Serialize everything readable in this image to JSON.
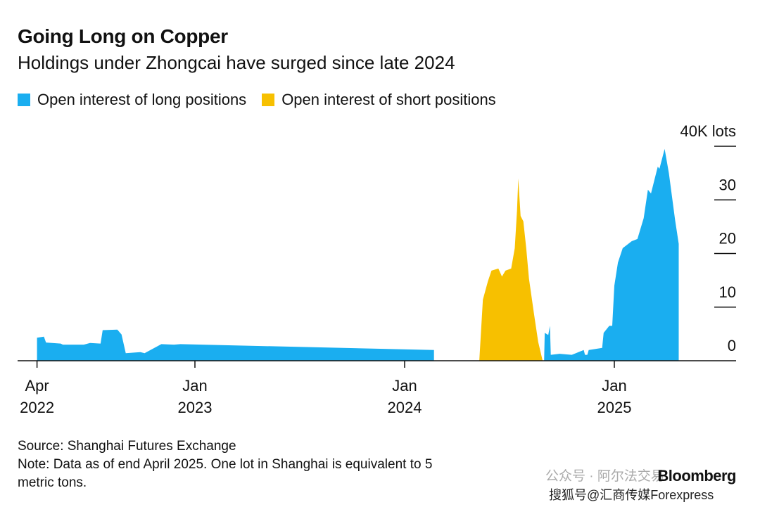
{
  "chart_data": {
    "type": "area",
    "title": "Going Long on Copper",
    "subtitle": "Holdings under Zhongcai have surged since late 2024",
    "y_unit_label": "40K lots",
    "ylim": [
      0,
      40
    ],
    "y_ticks": [
      {
        "value": 40,
        "label": "40K lots"
      },
      {
        "value": 30,
        "label": "30"
      },
      {
        "value": 20,
        "label": "20"
      },
      {
        "value": 10,
        "label": "10"
      },
      {
        "value": 0,
        "label": "0"
      }
    ],
    "x_ticks": [
      {
        "value": 2022.247,
        "line1": "Apr",
        "line2": "2022"
      },
      {
        "value": 2023.0,
        "line1": "Jan",
        "line2": "2023"
      },
      {
        "value": 2024.0,
        "line1": "Jan",
        "line2": "2024"
      },
      {
        "value": 2025.0,
        "line1": "Jan",
        "line2": "2025"
      }
    ],
    "legend_position": "top-left",
    "series": [
      {
        "name": "Open interest of long positions",
        "color": "#1aaef0",
        "segments": [
          [
            [
              2022.247,
              0
            ],
            [
              2022.247,
              4.3
            ],
            [
              2022.28,
              4.5
            ],
            [
              2022.29,
              3.4
            ],
            [
              2022.36,
              3.2
            ],
            [
              2022.37,
              3.0
            ],
            [
              2022.47,
              3.0
            ],
            [
              2022.5,
              3.3
            ],
            [
              2022.55,
              3.2
            ],
            [
              2022.56,
              5.7
            ],
            [
              2022.63,
              5.8
            ],
            [
              2022.65,
              4.9
            ],
            [
              2022.67,
              1.4
            ],
            [
              2022.74,
              1.6
            ],
            [
              2022.76,
              1.4
            ],
            [
              2022.84,
              3.1
            ],
            [
              2022.9,
              3.0
            ],
            [
              2022.93,
              3.1
            ],
            [
              2024.14,
              2.0
            ],
            [
              2024.14,
              0
            ]
          ],
          [
            [
              2024.665,
              0
            ],
            [
              2024.668,
              5.2
            ],
            [
              2024.685,
              4.8
            ],
            [
              2024.693,
              6.5
            ],
            [
              2024.697,
              1.1
            ],
            [
              2024.739,
              1.3
            ],
            [
              2024.797,
              1.1
            ],
            [
              2024.854,
              2.0
            ],
            [
              2024.86,
              1.1
            ],
            [
              2024.871,
              1.1
            ],
            [
              2024.878,
              2.0
            ],
            [
              2024.942,
              2.4
            ],
            [
              2024.949,
              5.2
            ],
            [
              2024.976,
              6.5
            ],
            [
              2024.99,
              6.5
            ],
            [
              2025.0,
              14
            ],
            [
              2025.017,
              18.3
            ],
            [
              2025.04,
              21
            ],
            [
              2025.083,
              22.3
            ],
            [
              2025.11,
              22.7
            ],
            [
              2025.14,
              26.6
            ],
            [
              2025.16,
              31.9
            ],
            [
              2025.175,
              31.2
            ],
            [
              2025.207,
              36.2
            ],
            [
              2025.215,
              35.8
            ],
            [
              2025.24,
              39.5
            ],
            [
              2025.26,
              35
            ],
            [
              2025.29,
              26.2
            ],
            [
              2025.307,
              21.8
            ],
            [
              2025.307,
              0
            ]
          ]
        ]
      },
      {
        "name": "Open interest of short positions",
        "color": "#f7c000",
        "segments": [
          [
            [
              2024.356,
              0
            ],
            [
              2024.373,
              11.4
            ],
            [
              2024.397,
              14.8
            ],
            [
              2024.414,
              16.8
            ],
            [
              2024.447,
              17.2
            ],
            [
              2024.464,
              15.7
            ],
            [
              2024.481,
              16.8
            ],
            [
              2024.508,
              17.2
            ],
            [
              2024.525,
              21
            ],
            [
              2024.536,
              28
            ],
            [
              2024.542,
              34
            ],
            [
              2024.553,
              27
            ],
            [
              2024.566,
              26
            ],
            [
              2024.58,
              21
            ],
            [
              2024.593,
              15.3
            ],
            [
              2024.617,
              8.7
            ],
            [
              2024.637,
              3.5
            ],
            [
              2024.658,
              0
            ]
          ]
        ]
      }
    ]
  },
  "footer": {
    "source": "Source: Shanghai Futures Exchange",
    "note_line1": "Note: Data as of end April 2025. One lot in Shanghai is equivalent to 5",
    "note_line2": "metric tons.",
    "brand": "Bloomberg",
    "watermark1": "公众号 · 阿尔法交易",
    "watermark2": "搜狐号@汇商传媒Forexpress"
  }
}
